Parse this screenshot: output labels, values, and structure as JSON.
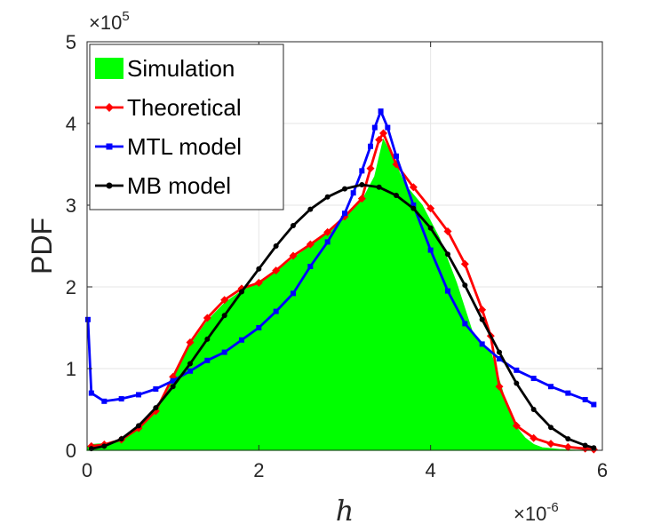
{
  "chart_data": {
    "type": "area",
    "title": "",
    "xlabel": "h",
    "ylabel": "PDF",
    "xlim": [
      0,
      6
    ],
    "ylim": [
      0,
      5
    ],
    "x_scale_label": {
      "base": "×10",
      "exponent": "-6"
    },
    "y_scale_label": {
      "base": "×10",
      "exponent": "5"
    },
    "x_ticks": [
      "0",
      "2",
      "4",
      "6"
    ],
    "y_ticks": [
      "0",
      "1",
      "2",
      "3",
      "4",
      "5"
    ],
    "grid": true,
    "legend_position": "top-left",
    "colors": {
      "simulation": "#00ff00",
      "theoretical": "#ff0000",
      "mtl": "#0000ff",
      "mb": "#000000",
      "grid": "#e6e6e6",
      "axis": "#262626"
    },
    "legend": [
      "Simulation",
      "Theoretical",
      "MTL model",
      "MB model"
    ],
    "series": [
      {
        "name": "Simulation",
        "style": "filled",
        "x": [
          0,
          0.01,
          0.05,
          0.2,
          0.4,
          0.6,
          0.8,
          1.0,
          1.1,
          1.2,
          1.4,
          1.6,
          1.8,
          2.0,
          2.2,
          2.4,
          2.6,
          2.8,
          3.0,
          3.2,
          3.35,
          3.45,
          3.55,
          3.7,
          3.9,
          4.1,
          4.3,
          4.5,
          4.7,
          4.8,
          4.9,
          5.0,
          5.1,
          5.2,
          5.3,
          5.5,
          5.7,
          5.9
        ],
        "y": [
          0,
          0.05,
          0.07,
          0.08,
          0.12,
          0.25,
          0.45,
          0.85,
          1.1,
          1.28,
          1.58,
          1.8,
          1.95,
          2.05,
          2.18,
          2.35,
          2.5,
          2.65,
          2.85,
          3.05,
          3.35,
          3.8,
          3.6,
          3.25,
          3.0,
          2.6,
          2.05,
          1.4,
          1.2,
          0.85,
          0.5,
          0.28,
          0.15,
          0.07,
          0.03,
          0.01,
          0,
          0
        ]
      },
      {
        "name": "Theoretical",
        "style": "line-diamond",
        "x": [
          0.05,
          0.2,
          0.4,
          0.6,
          0.8,
          1.0,
          1.2,
          1.4,
          1.6,
          1.8,
          2.0,
          2.2,
          2.4,
          2.6,
          2.8,
          3.0,
          3.2,
          3.3,
          3.4,
          3.45,
          3.6,
          3.8,
          4.0,
          4.2,
          4.4,
          4.6,
          4.7,
          4.8,
          5.0,
          5.2,
          5.4,
          5.6,
          5.8,
          5.9
        ],
        "y": [
          0.05,
          0.07,
          0.13,
          0.27,
          0.48,
          0.9,
          1.32,
          1.62,
          1.84,
          1.98,
          2.05,
          2.2,
          2.38,
          2.52,
          2.67,
          2.86,
          3.08,
          3.45,
          3.8,
          3.88,
          3.5,
          3.22,
          2.96,
          2.68,
          2.28,
          1.72,
          1.4,
          0.78,
          0.3,
          0.15,
          0.08,
          0.04,
          0.02,
          0.01
        ]
      },
      {
        "name": "MTL model",
        "style": "line-square",
        "x": [
          0.01,
          0.05,
          0.2,
          0.4,
          0.6,
          0.8,
          1.0,
          1.2,
          1.4,
          1.6,
          1.8,
          2.0,
          2.2,
          2.4,
          2.6,
          2.8,
          3.0,
          3.1,
          3.2,
          3.3,
          3.35,
          3.42,
          3.5,
          3.6,
          3.8,
          4.0,
          4.2,
          4.4,
          4.6,
          4.8,
          5.0,
          5.2,
          5.4,
          5.6,
          5.8,
          5.9
        ],
        "y": [
          1.6,
          0.7,
          0.6,
          0.63,
          0.68,
          0.75,
          0.85,
          0.97,
          1.1,
          1.2,
          1.35,
          1.5,
          1.7,
          1.92,
          2.25,
          2.55,
          2.9,
          3.15,
          3.42,
          3.72,
          3.95,
          4.15,
          3.95,
          3.6,
          3.0,
          2.45,
          1.95,
          1.55,
          1.3,
          1.12,
          0.98,
          0.88,
          0.78,
          0.7,
          0.62,
          0.56
        ]
      },
      {
        "name": "MB model",
        "style": "line-dot",
        "x": [
          0.05,
          0.2,
          0.4,
          0.6,
          0.8,
          1.0,
          1.2,
          1.4,
          1.6,
          1.8,
          2.0,
          2.2,
          2.4,
          2.6,
          2.8,
          3.0,
          3.2,
          3.4,
          3.6,
          3.8,
          4.0,
          4.2,
          4.4,
          4.6,
          4.8,
          5.0,
          5.2,
          5.4,
          5.6,
          5.8,
          5.9
        ],
        "y": [
          0.02,
          0.05,
          0.14,
          0.3,
          0.52,
          0.78,
          1.06,
          1.36,
          1.65,
          1.94,
          2.22,
          2.5,
          2.75,
          2.95,
          3.1,
          3.2,
          3.25,
          3.22,
          3.12,
          2.96,
          2.72,
          2.4,
          2.02,
          1.6,
          1.2,
          0.82,
          0.5,
          0.28,
          0.14,
          0.06,
          0.03
        ]
      }
    ]
  }
}
